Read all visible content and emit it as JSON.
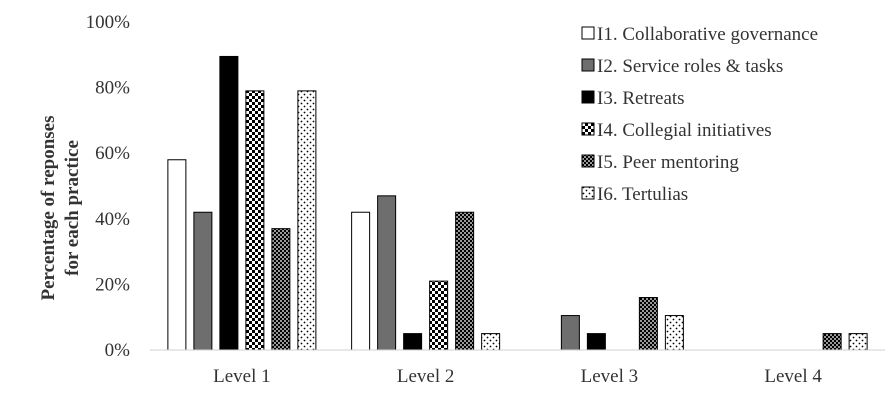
{
  "chart_data": {
    "type": "bar",
    "ylabel": [
      "Percentage of reponses",
      "for each practice"
    ],
    "xlabel": "",
    "ylim": [
      0,
      100
    ],
    "yticks": [
      "0%",
      "20%",
      "40%",
      "60%",
      "80%",
      "100%"
    ],
    "categories": [
      "Level 1",
      "Level 2",
      "Level 3",
      "Level 4"
    ],
    "legend_position": "top-right",
    "series": [
      {
        "name": "I1. Collaborative governance",
        "pattern": "white",
        "values": [
          58,
          42,
          0,
          0
        ]
      },
      {
        "name": "I2. Service roles & tasks",
        "pattern": "gray",
        "values": [
          42,
          47,
          10.5,
          0
        ]
      },
      {
        "name": "I3. Retreats",
        "pattern": "black",
        "values": [
          89.5,
          5,
          5,
          0
        ]
      },
      {
        "name": "I4. Collegial initiatives",
        "pattern": "checker",
        "values": [
          79,
          21,
          0,
          0
        ]
      },
      {
        "name": "I5. Peer mentoring",
        "pattern": "dark-checker",
        "values": [
          37,
          42,
          16,
          5
        ]
      },
      {
        "name": "I6. Tertulias",
        "pattern": "dotted",
        "values": [
          79,
          5,
          10.5,
          5
        ]
      }
    ],
    "colors": {
      "gray": "#6e6e6e",
      "black": "#000000",
      "outline": "#000000",
      "axis": "#d0d0d0",
      "text": "#333333"
    }
  }
}
